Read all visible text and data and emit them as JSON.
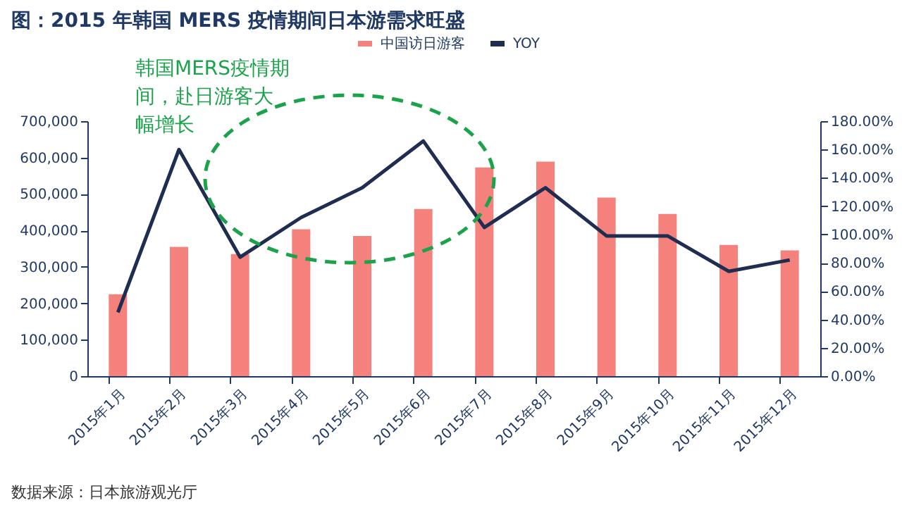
{
  "chart_data": {
    "type": "bar",
    "title": "图：2015 年韩国 MERS 疫情期间日本游需求旺盛",
    "categories": [
      "2015年1月",
      "2015年2月",
      "2015年3月",
      "2015年4月",
      "2015年5月",
      "2015年6月",
      "2015年7月",
      "2015年8月",
      "2015年9月",
      "2015年10月",
      "2015年11月",
      "2015年12月"
    ],
    "series": [
      {
        "name": "中国访日游客",
        "type": "bar",
        "color": "#f4817b",
        "values": [
          225000,
          355000,
          335000,
          403000,
          385000,
          459000,
          573000,
          589000,
          490000,
          445000,
          360000,
          345000
        ]
      },
      {
        "name": "YOY",
        "type": "line",
        "axis": "y2",
        "color": "#1f2d50",
        "values": [
          45,
          160,
          84,
          112,
          133,
          166,
          105,
          133,
          99,
          99,
          74,
          82
        ]
      }
    ],
    "ylim": [
      0,
      700000
    ],
    "yticks": [
      0,
      {
        "value": 100000,
        "label": "100,000"
      },
      {
        "value": 200000,
        "label": "200,000"
      },
      {
        "value": 300000,
        "label": "300,000"
      },
      {
        "value": 400000,
        "label": "400,000"
      },
      {
        "value": 500000,
        "label": "500,000"
      },
      {
        "value": 600000,
        "label": "600,000"
      },
      {
        "value": 700000,
        "label": "700,000"
      }
    ],
    "y2lim": [
      0,
      180
    ],
    "y2ticks": [
      {
        "value": 0,
        "label": "0.00%"
      },
      {
        "value": 20,
        "label": "20.00%"
      },
      {
        "value": 40,
        "label": "40.00%"
      },
      {
        "value": 60,
        "label": "60.00%"
      },
      {
        "value": 80,
        "label": "80.00%"
      },
      {
        "value": 100,
        "label": "100.00%"
      },
      {
        "value": 120,
        "label": "120.00%"
      },
      {
        "value": 140,
        "label": "140.00%"
      },
      {
        "value": 160,
        "label": "160.00%"
      },
      {
        "value": 180,
        "label": "180.00%"
      }
    ],
    "legend": "top",
    "grid": false,
    "marker": "none",
    "line_style": "solid",
    "annotations": [
      "韩国MERS疫情期间，赴日游客大幅增长",
      "数据来源：日本旅游观光厅"
    ]
  }
}
